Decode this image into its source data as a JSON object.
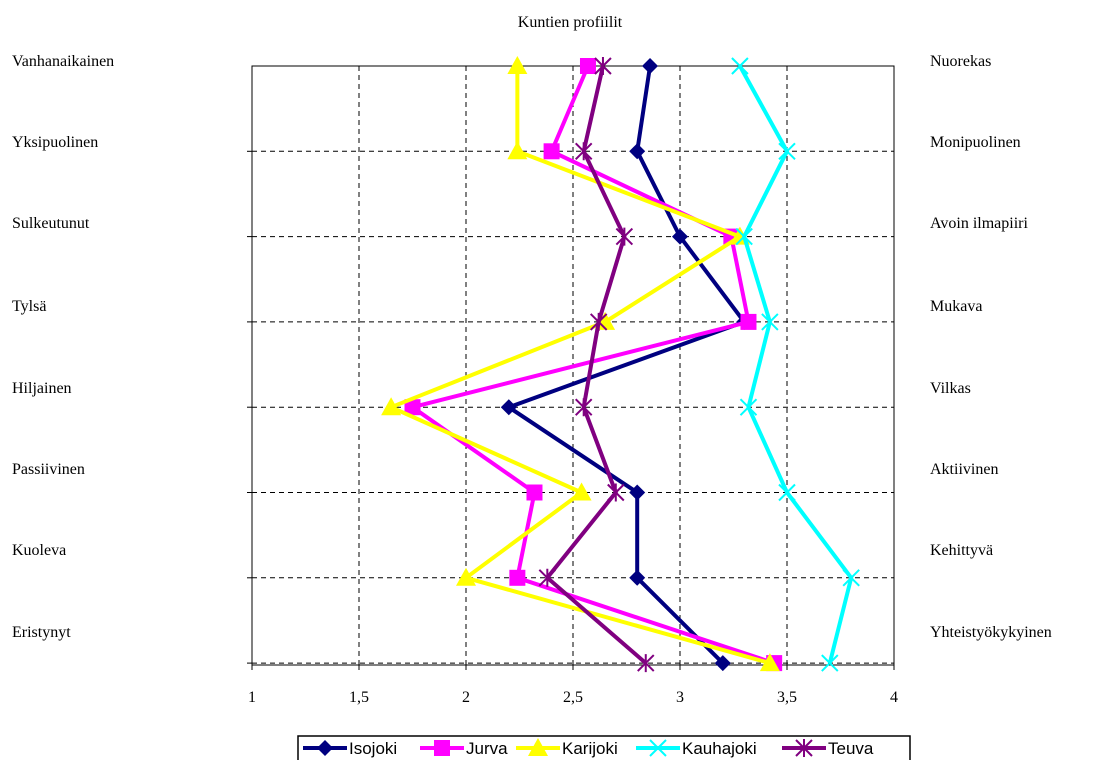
{
  "chart_data": {
    "type": "line",
    "title": "Kuntien profiilit",
    "x_ticks": [
      "1",
      "1,5",
      "2",
      "2,5",
      "3",
      "3,5",
      "4"
    ],
    "xlim": [
      1,
      4
    ],
    "left_labels": [
      "Vanhanaikainen",
      "Yksipuolinen",
      "Sulkeutunut",
      "Tylsä",
      "Hiljainen",
      "Passiivinen",
      "Kuoleva",
      "Eristynyt"
    ],
    "right_labels": [
      "Nuorekas",
      "Monipuolinen",
      "Avoin ilmapiiri",
      "Mukava",
      "Vilkas",
      "Aktiivinen",
      "Kehittyvä",
      "Yhteistyökykyinen"
    ],
    "grid": true,
    "legend_position": "bottom",
    "series": [
      {
        "name": "Isojoki",
        "color": "#000080",
        "marker": "diamond",
        "values": [
          2.86,
          2.8,
          3.0,
          3.3,
          2.2,
          2.8,
          2.8,
          3.2
        ]
      },
      {
        "name": "Jurva",
        "color": "#ff00ff",
        "marker": "square",
        "values": [
          2.57,
          2.4,
          3.24,
          3.32,
          1.75,
          2.32,
          2.24,
          3.44
        ]
      },
      {
        "name": "Karijoki",
        "color": "#ffff00",
        "marker": "triangle",
        "values": [
          2.24,
          2.24,
          3.28,
          2.65,
          1.65,
          2.54,
          2.0,
          3.42
        ]
      },
      {
        "name": "Kauhajoki",
        "color": "#00ffff",
        "marker": "x",
        "values": [
          3.28,
          3.5,
          3.3,
          3.42,
          3.32,
          3.5,
          3.8,
          3.7
        ]
      },
      {
        "name": "Teuva",
        "color": "#800080",
        "marker": "star",
        "values": [
          2.64,
          2.55,
          2.74,
          2.62,
          2.55,
          2.7,
          2.38,
          2.84
        ]
      }
    ]
  }
}
